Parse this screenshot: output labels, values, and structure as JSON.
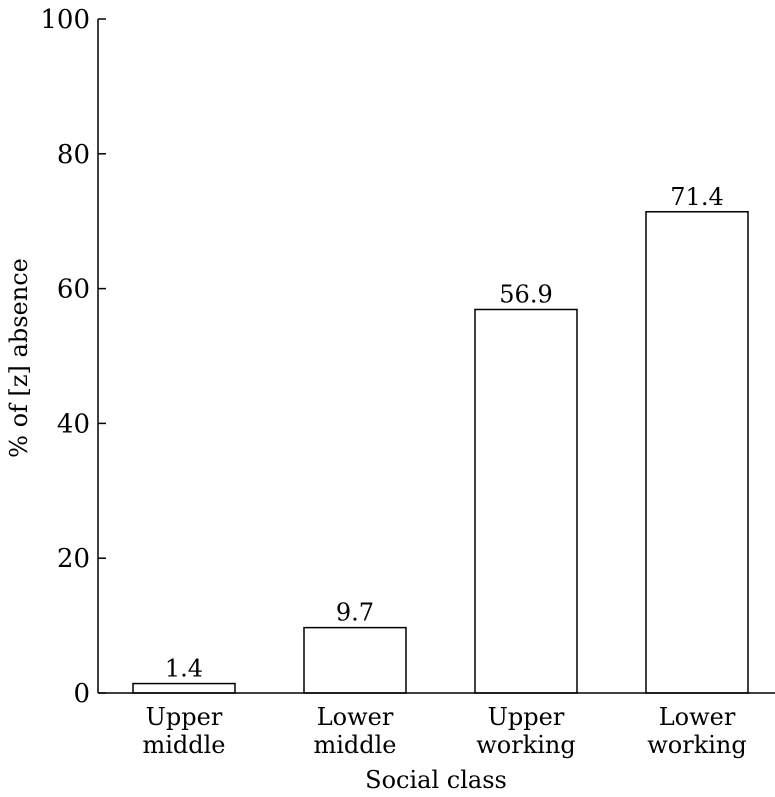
{
  "chart_data": {
    "type": "bar",
    "categories": [
      [
        "Upper",
        "middle"
      ],
      [
        "Lower",
        "middle"
      ],
      [
        "Upper",
        "working"
      ],
      [
        "Lower",
        "working"
      ]
    ],
    "values": [
      1.4,
      9.7,
      56.9,
      71.4
    ],
    "data_labels": [
      "1.4",
      "9.7",
      "56.9",
      "71.4"
    ],
    "xlabel": "Social class",
    "ylabel": "% of [z] absence",
    "ylim": [
      0,
      100
    ],
    "yticks": [
      0,
      20,
      40,
      60,
      80,
      100
    ],
    "grid": false,
    "legend": "none",
    "bar_fill": "#ffffff",
    "bar_stroke": "#000000"
  }
}
